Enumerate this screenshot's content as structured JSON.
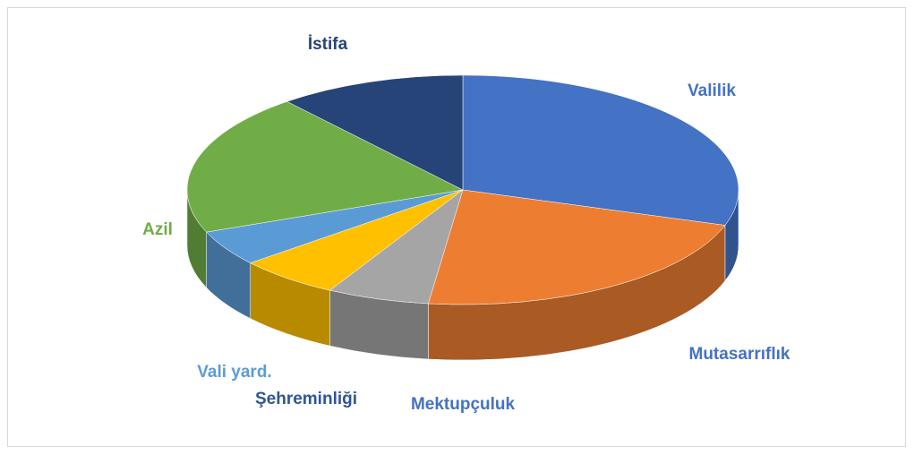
{
  "chart_data": {
    "type": "pie3d",
    "categories": [
      "Valilik",
      "Mutasarrıflık",
      "Mektupçuluk",
      "Şehreminliği",
      "Vali yard.",
      "Azil",
      "İstifa"
    ],
    "values": [
      30,
      22,
      6,
      6,
      5,
      20,
      11
    ],
    "colors": [
      "#4472c4",
      "#ed7d31",
      "#a5a5a5",
      "#ffc000",
      "#5b9bd5",
      "#70ad47",
      "#264478"
    ],
    "label_colors": [
      "#4472c4",
      "#4472c4",
      "#4472c4",
      "#2f5597",
      "#5b9bd5",
      "#70ad47",
      "#264478"
    ]
  }
}
